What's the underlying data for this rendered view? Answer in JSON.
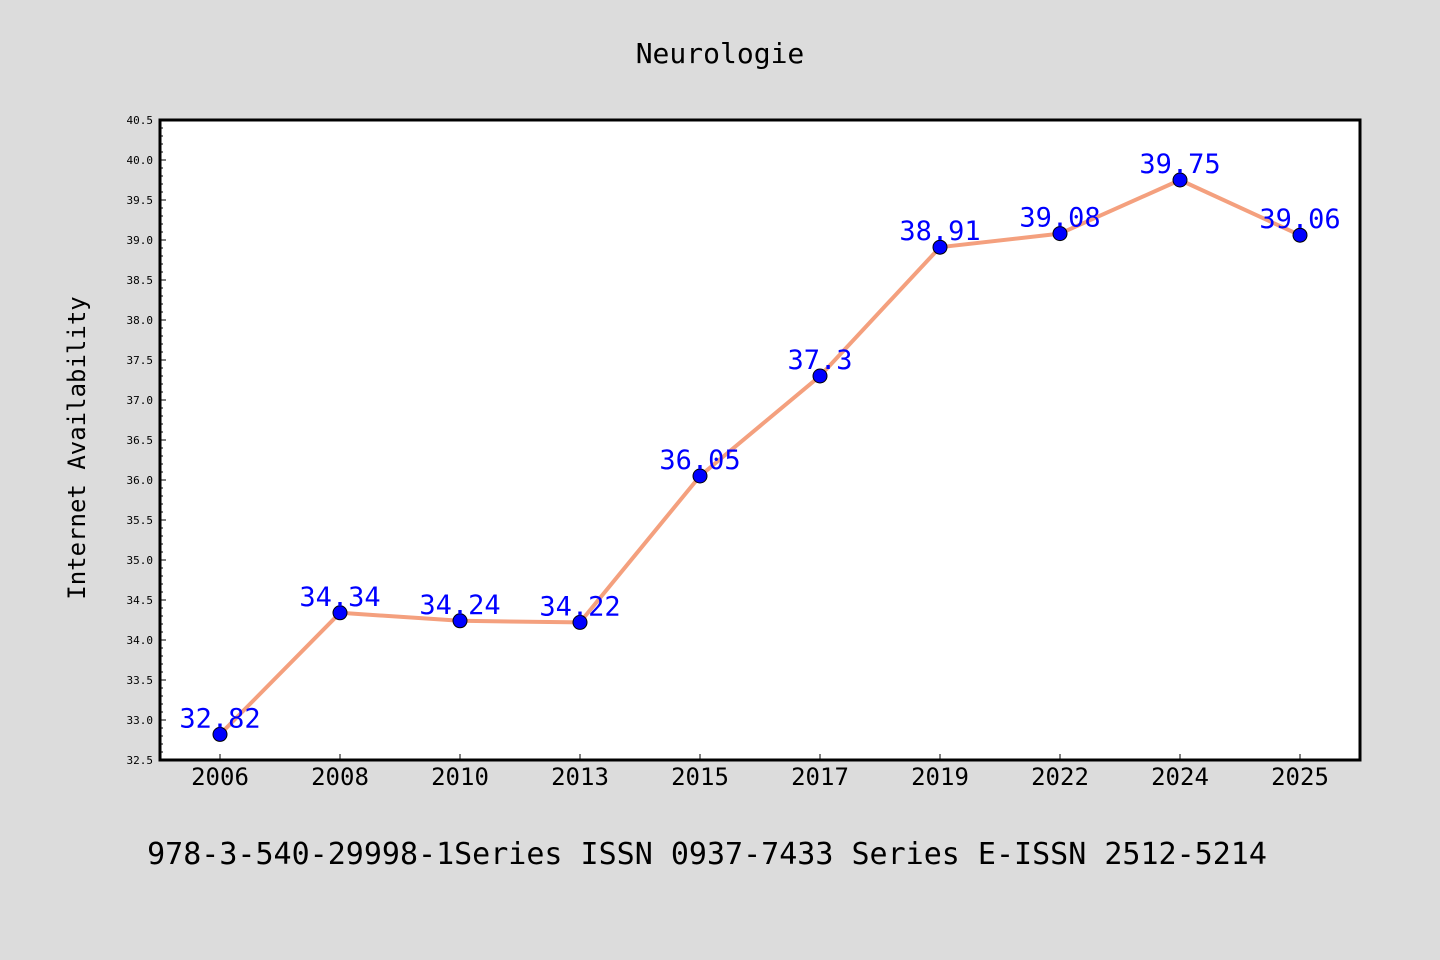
{
  "chart_data": {
    "type": "line",
    "title": "Neurologie",
    "xlabel": "",
    "ylabel": "Internet Availability",
    "caption": "978-3-540-29998-1Series ISSN 0937-7433 Series E-ISSN 2512-5214",
    "categories": [
      "2006",
      "2008",
      "2010",
      "2013",
      "2015",
      "2017",
      "2019",
      "2022",
      "2024",
      "2025"
    ],
    "series": [
      {
        "values": [
          32.82,
          34.34,
          34.24,
          34.22,
          36.05,
          37.3,
          38.91,
          39.08,
          39.75,
          39.06
        ],
        "labels": [
          "32.82",
          "34.34",
          "34.24",
          "34.22",
          "36.05",
          "37.3",
          "38.91",
          "39.08",
          "39.75",
          "39.06"
        ]
      }
    ],
    "ylim": [
      32.5,
      40.5
    ],
    "yticks": [
      "32.5",
      "33.0",
      "33.5",
      "34.0",
      "34.5",
      "35.0",
      "35.5",
      "36.0",
      "36.5",
      "37.0",
      "37.5",
      "38.0",
      "38.5",
      "39.0",
      "39.5",
      "40.0",
      "40.5"
    ],
    "grid": false,
    "legend": "none",
    "colors": {
      "background": "#dcdcdc",
      "plot_background": "#ffffff",
      "line": "#f4a07e",
      "marker": "#0000ff",
      "data_label": "#0000ff",
      "text": "#000000"
    }
  }
}
